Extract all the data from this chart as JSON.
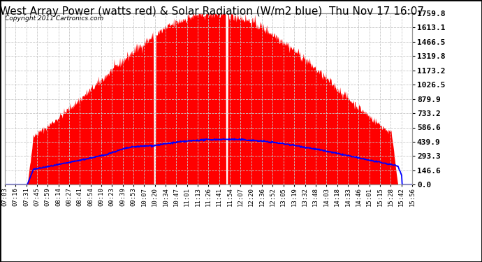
{
  "title": "West Array Power (watts red) & Solar Radiation (W/m2 blue)  Thu Nov 17 16:07",
  "copyright_text": "Copyright 2011 Cartronics.com",
  "background_color": "#ffffff",
  "plot_bg_color": "#ffffff",
  "grid_color": "#c8c8c8",
  "y_ticks": [
    0.0,
    146.6,
    293.3,
    439.9,
    586.6,
    733.2,
    879.9,
    1026.5,
    1173.2,
    1319.8,
    1466.5,
    1613.1,
    1759.8
  ],
  "y_max": 1759.8,
  "x_labels": [
    "07:03",
    "07:16",
    "07:31",
    "07:45",
    "07:59",
    "08:14",
    "08:27",
    "08:41",
    "08:54",
    "09:10",
    "09:23",
    "09:39",
    "09:53",
    "10:07",
    "10:20",
    "10:34",
    "10:47",
    "11:01",
    "11:13",
    "11:26",
    "11:41",
    "11:54",
    "12:07",
    "12:20",
    "12:36",
    "12:52",
    "13:05",
    "13:19",
    "13:32",
    "13:48",
    "14:03",
    "14:18",
    "14:33",
    "14:46",
    "15:01",
    "15:15",
    "15:28",
    "15:42",
    "15:56"
  ],
  "red_area_color": "#ff0000",
  "blue_line_color": "#0000ff",
  "title_fontsize": 11,
  "copyright_fontsize": 6.5,
  "tick_fontsize": 6.5,
  "ytick_fontsize": 8,
  "outer_border_color": "#000000"
}
